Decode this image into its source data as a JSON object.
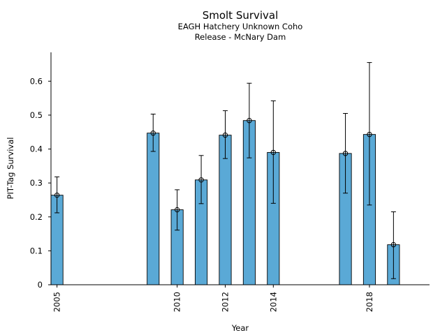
{
  "chart_data": {
    "type": "bar",
    "title": "Smolt Survival",
    "subtitle_lines": [
      "EAGH Hatchery Unknown Coho",
      "Release - McNary Dam"
    ],
    "xlabel": "Year",
    "ylabel": "PIT-Tag Survival",
    "x": [
      2005,
      2009,
      2010,
      2011,
      2012,
      2013,
      2014,
      2017,
      2018,
      2019
    ],
    "values": [
      0.264,
      0.447,
      0.221,
      0.309,
      0.441,
      0.484,
      0.39,
      0.387,
      0.443,
      0.118
    ],
    "err_low": [
      0.212,
      0.393,
      0.161,
      0.239,
      0.372,
      0.374,
      0.24,
      0.27,
      0.235,
      0.018
    ],
    "err_high": [
      0.318,
      0.503,
      0.28,
      0.381,
      0.513,
      0.594,
      0.542,
      0.505,
      0.655,
      0.215
    ],
    "xlim": [
      2004.75,
      2020.5
    ],
    "ylim": [
      0,
      0.685
    ],
    "xticks": [
      2005,
      2010,
      2012,
      2014,
      2018
    ],
    "yticks": [
      0,
      0.1,
      0.2,
      0.3,
      0.4,
      0.5,
      0.6
    ],
    "ytick_labels": [
      "0",
      "0.1",
      "0.2",
      "0.3",
      "0.4",
      "0.5",
      "0.6"
    ],
    "bar_color": "#5aa9d6",
    "grid": false
  }
}
